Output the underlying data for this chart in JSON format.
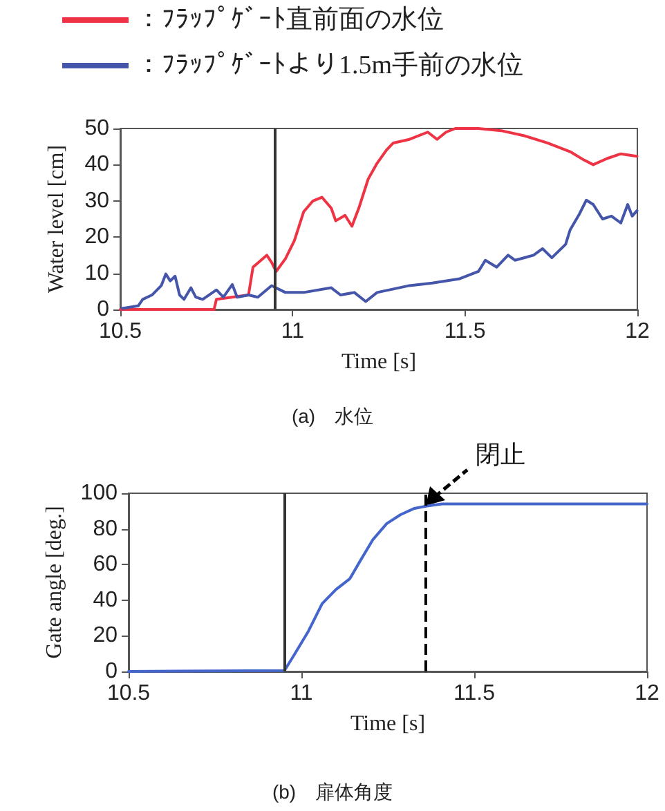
{
  "chart_data": [
    {
      "type": "line",
      "title": "(a)　水位",
      "xlabel": "Time [s]",
      "ylabel": "Water level [cm]",
      "xlim": [
        10.5,
        12
      ],
      "xticks": [
        10.5,
        11,
        11.5,
        12
      ],
      "ylim": [
        0,
        50
      ],
      "yticks": [
        0,
        10,
        20,
        30,
        40,
        50
      ],
      "grid": false,
      "legend": "top",
      "marker": "none",
      "line_style": "solid",
      "ref_lines": [
        {
          "axis": "x",
          "value": 10.95,
          "color": "#333333",
          "line_style": "solid"
        }
      ],
      "series": [
        {
          "name": "：ﾌﾗｯﾌﾟｹﾞｰﾄ直前面の水位",
          "color": "#ee3344",
          "x": [
            10.5,
            10.772,
            10.779,
            10.872,
            10.885,
            10.925,
            10.939,
            10.952,
            10.979,
            11.005,
            11.032,
            11.059,
            11.085,
            11.112,
            11.125,
            11.152,
            11.172,
            11.192,
            11.219,
            11.245,
            11.272,
            11.292,
            11.339,
            11.392,
            11.419,
            11.445,
            11.472,
            11.539,
            11.605,
            11.672,
            11.739,
            11.805,
            11.845,
            11.872,
            11.912,
            11.952,
            11.999
          ],
          "values": [
            0,
            0,
            2.8,
            4,
            11.7,
            15,
            13,
            10.5,
            14,
            19,
            27,
            30,
            31,
            28,
            24.5,
            26,
            23,
            28,
            36,
            40.4,
            44,
            46,
            47,
            49,
            47,
            49,
            50,
            50,
            49.4,
            48,
            46,
            43.6,
            41.3,
            40,
            41.7,
            43,
            42.3
          ]
        },
        {
          "name": "：ﾌﾗｯﾌﾟｹﾞｰﾄより1.5m手前の水位",
          "color": "#4455aa",
          "x": [
            10.505,
            10.552,
            10.565,
            10.592,
            10.619,
            10.632,
            10.645,
            10.659,
            10.672,
            10.685,
            10.705,
            10.719,
            10.739,
            10.779,
            10.799,
            10.825,
            10.839,
            10.872,
            10.899,
            10.939,
            10.979,
            11.032,
            11.112,
            11.139,
            11.179,
            11.212,
            11.245,
            11.339,
            11.405,
            11.485,
            11.539,
            11.559,
            11.592,
            11.625,
            11.645,
            11.699,
            11.725,
            11.752,
            11.792,
            11.805,
            11.832,
            11.852,
            11.872,
            11.899,
            11.925,
            11.952,
            11.972,
            11.985,
            11.999
          ],
          "values": [
            0.3,
            1,
            2.8,
            4,
            6.6,
            9.8,
            7.9,
            9.2,
            4,
            2.8,
            6,
            3.4,
            2.8,
            5.4,
            3.4,
            6.9,
            3.4,
            4,
            3.4,
            6.6,
            4.7,
            4.7,
            6,
            4,
            4.7,
            2.2,
            4.7,
            6.6,
            7.3,
            8.5,
            10.5,
            13.6,
            11.7,
            15,
            13.6,
            15,
            16.8,
            14.3,
            18,
            22,
            26.4,
            30.2,
            29,
            25,
            25.8,
            23.9,
            29,
            25.8,
            27.3
          ]
        }
      ]
    },
    {
      "type": "line",
      "title": "(b)　扉体角度",
      "xlabel": "Time [s]",
      "ylabel": "Gate angle [deg.]",
      "xlim": [
        10.5,
        12
      ],
      "xticks": [
        10.5,
        11,
        11.5,
        12
      ],
      "ylim": [
        0,
        100
      ],
      "yticks": [
        0,
        20,
        40,
        60,
        80,
        100
      ],
      "grid": false,
      "marker": "none",
      "line_style": "solid",
      "ref_lines": [
        {
          "axis": "x",
          "value": 10.95,
          "color": "#333333",
          "line_style": "solid"
        },
        {
          "axis": "x",
          "value": 11.36,
          "color": "#000000",
          "line_style": "dashed"
        }
      ],
      "annotations": [
        {
          "text": "閉止",
          "x": 11.36,
          "y": 93
        }
      ],
      "series": [
        {
          "color": "#4466cc",
          "x": [
            10.5,
            10.951,
            10.98,
            11.02,
            11.06,
            11.1,
            11.14,
            11.167,
            11.207,
            11.247,
            11.287,
            11.327,
            11.363,
            11.407,
            11.513,
            12
          ],
          "values": [
            0,
            0.5,
            9.6,
            22.5,
            38,
            46,
            52,
            61,
            74,
            83,
            88,
            91.5,
            92.8,
            94,
            94,
            94
          ]
        }
      ]
    }
  ]
}
